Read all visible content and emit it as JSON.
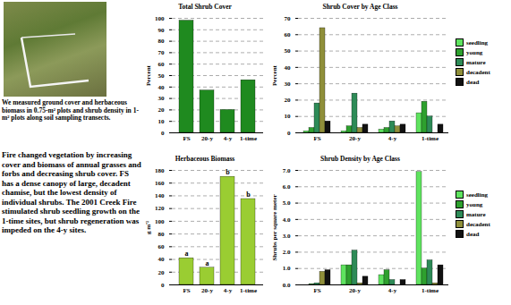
{
  "captions": {
    "photo": "We measured ground cover and herbaceous biomass in 0.75-m² plots and shrub density in 1-m² plots along soil sampling transects.",
    "summary": "Fire changed vegetation by increasing cover and biomass of annual grasses and forbs and decreasing shrub cover. FS has a dense canopy of large, decadent chamise, but the lowest density of individual shrubs. The 2001 Creek Fire stimulated shrub seedling growth on the 1-time sites, but shrub regeneration was impeded on the 4-y sites."
  },
  "chart_data": [
    {
      "type": "bar",
      "title": "Total Shrub Cover",
      "y_label": "Percent",
      "categories": [
        "FS",
        "20-y",
        "4-y",
        "1-time"
      ],
      "values": [
        98,
        37,
        20,
        46
      ],
      "color": "#1f8a1f",
      "ylim": [
        0,
        100
      ],
      "yticks": [
        0,
        10,
        20,
        30,
        40,
        50,
        60,
        70,
        80,
        90,
        100
      ],
      "grid": true
    },
    {
      "type": "bar",
      "title": "Shrub Cover by Age Class",
      "y_label": "Percent",
      "categories": [
        "FS",
        "20-y",
        "4-y",
        "1-time"
      ],
      "series": [
        {
          "name": "seedling",
          "color": "#5fe35f",
          "values": [
            1,
            1,
            2,
            12
          ]
        },
        {
          "name": "young",
          "color": "#2ea02e",
          "values": [
            3,
            4,
            3,
            19
          ]
        },
        {
          "name": "mature",
          "color": "#2e8b57",
          "values": [
            18,
            24,
            7,
            10
          ]
        },
        {
          "name": "decadent",
          "color": "#8f8f3a",
          "values": [
            64,
            3,
            4,
            0
          ]
        },
        {
          "name": "dead",
          "color": "#111111",
          "values": [
            7,
            5,
            5,
            5
          ]
        }
      ],
      "ylim": [
        0,
        70
      ],
      "yticks": [
        0,
        10,
        20,
        30,
        40,
        50,
        60,
        70
      ],
      "grid": true,
      "legend": "right"
    },
    {
      "type": "bar",
      "title": "Herbaceous Biomass",
      "y_label": "g m⁻²",
      "categories": [
        "FS",
        "20-y",
        "4-y",
        "1-time"
      ],
      "values": [
        42,
        27,
        170,
        135
      ],
      "annotations": [
        "a",
        "a",
        "b",
        "b"
      ],
      "color": "#9acd32",
      "ylim": [
        0,
        180
      ],
      "yticks": [
        0,
        20,
        40,
        60,
        80,
        100,
        120,
        140,
        160,
        180
      ],
      "grid": true
    },
    {
      "type": "bar",
      "title": "Shrub Density by Age Class",
      "y_label": "Shrubs per square meter",
      "categories": [
        "FS",
        "20-y",
        "4-y",
        "1-time"
      ],
      "series": [
        {
          "name": "seedling",
          "color": "#5fe35f",
          "values": [
            0,
            1.2,
            0.6,
            6.9
          ]
        },
        {
          "name": "young",
          "color": "#2ea02e",
          "values": [
            0.05,
            1.2,
            0.9,
            1.0
          ]
        },
        {
          "name": "mature",
          "color": "#2e8b57",
          "values": [
            0.1,
            2.1,
            0.3,
            1.5
          ]
        },
        {
          "name": "decadent",
          "color": "#8f8f3a",
          "values": [
            0.8,
            0.1,
            0,
            0.1
          ]
        },
        {
          "name": "dead",
          "color": "#111111",
          "values": [
            0.9,
            0.5,
            0.3,
            1.2
          ]
        }
      ],
      "ylim": [
        0,
        7
      ],
      "yticks": [
        0,
        1,
        2,
        3,
        4,
        5,
        6,
        7
      ],
      "grid": true,
      "legend": "right"
    }
  ]
}
